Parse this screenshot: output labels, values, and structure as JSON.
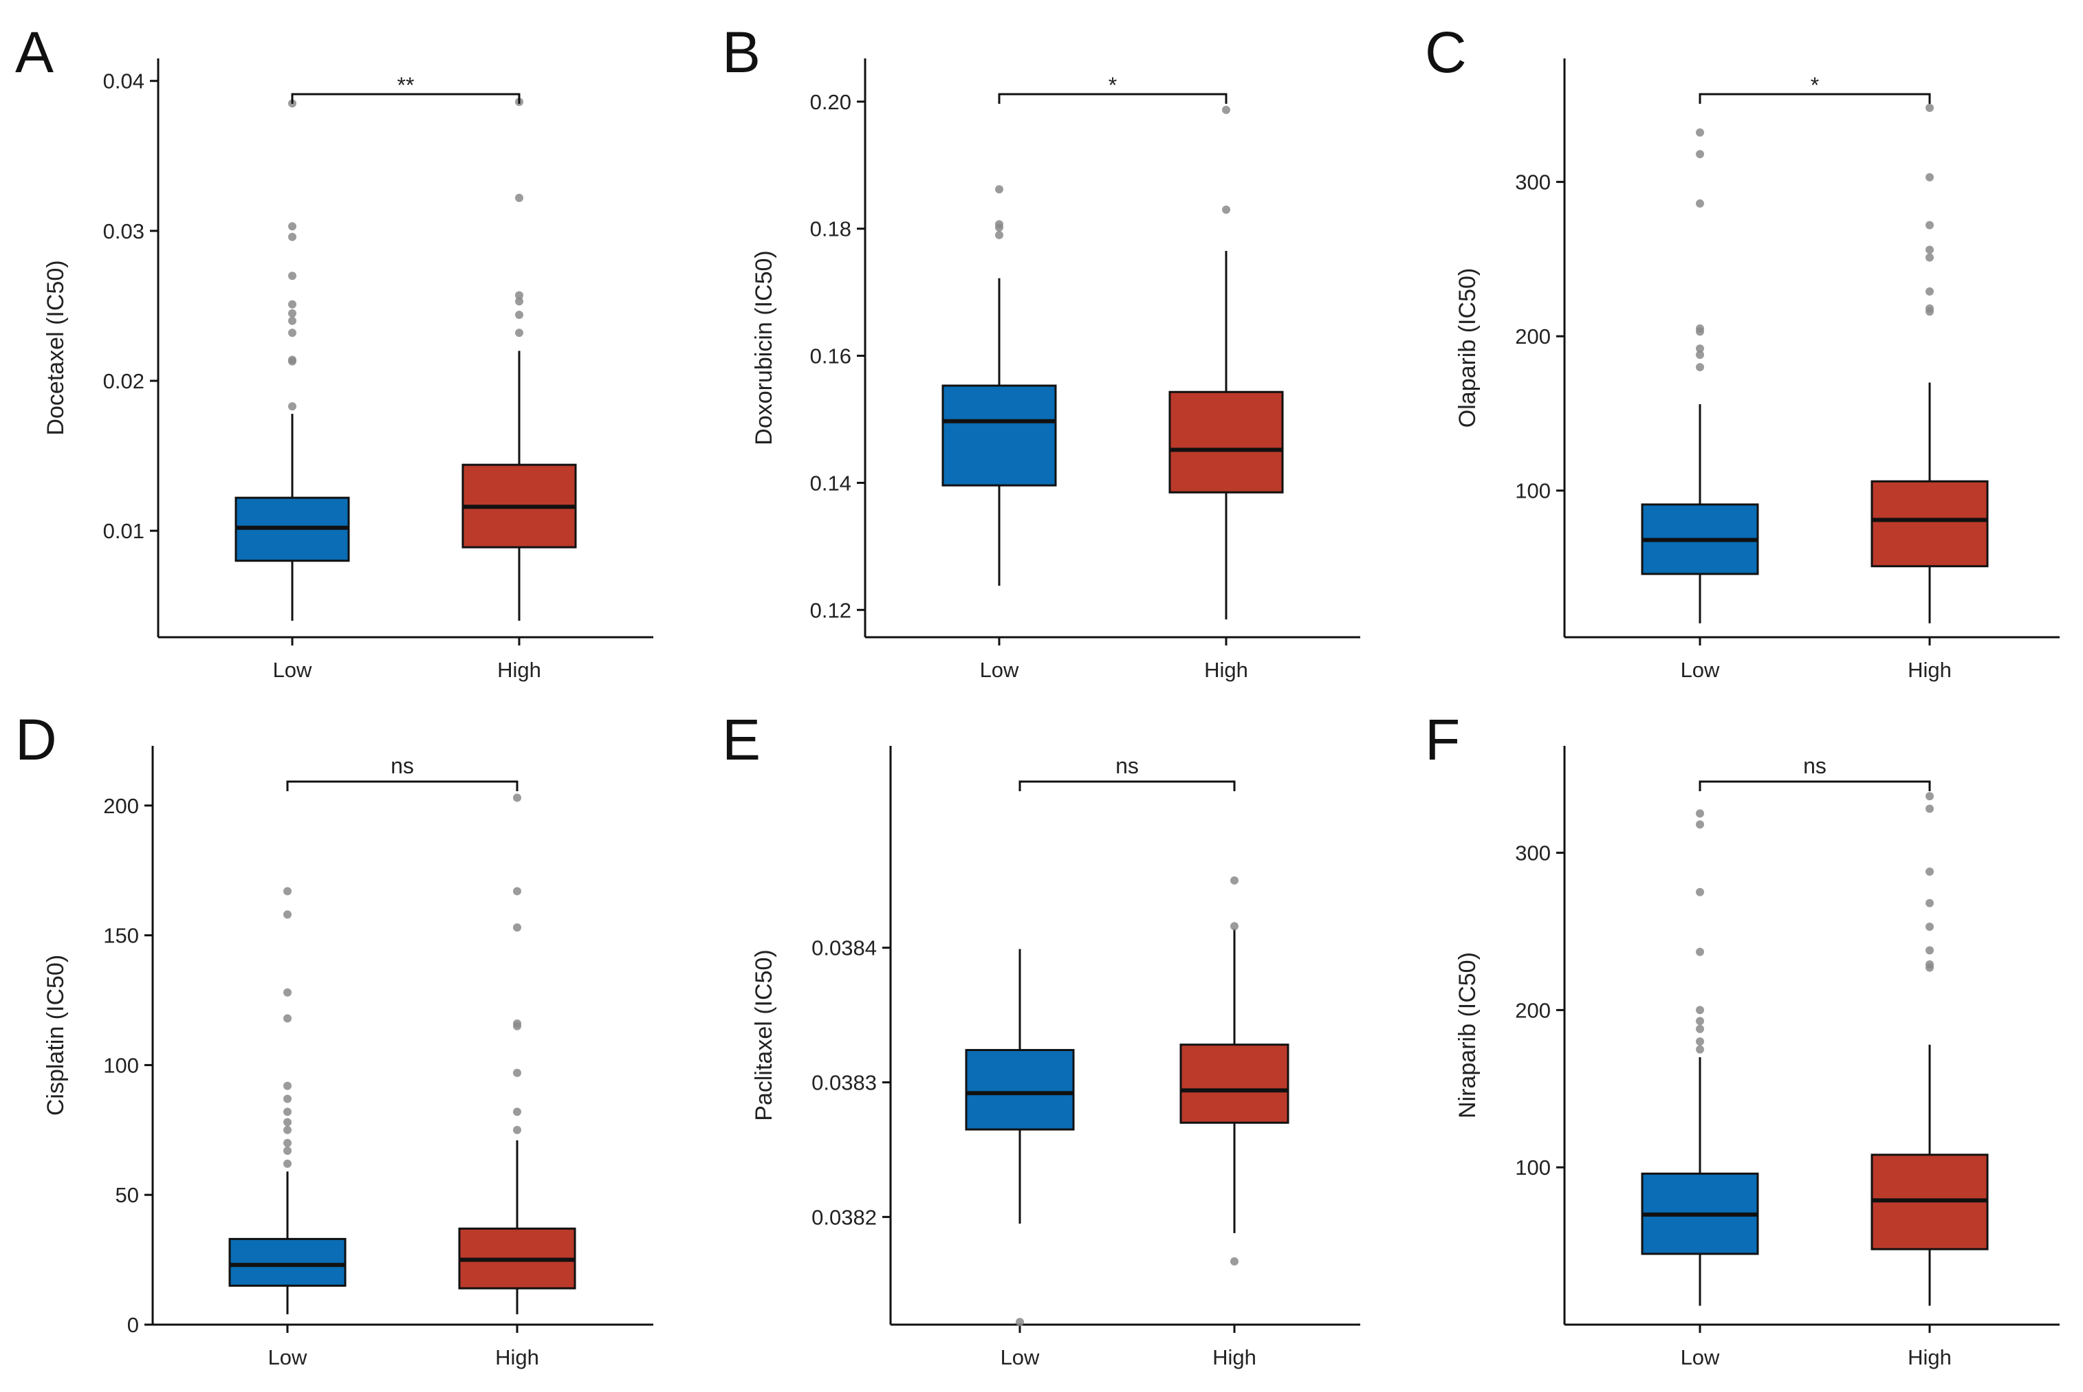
{
  "figure": {
    "group_colors": {
      "Low": "#0a6db5",
      "High": "#bb3a2a"
    },
    "outlier_color": "#8a8a8a"
  },
  "chart_data": [
    {
      "type": "box",
      "letter": "A",
      "ylabel": "Docetaxel (IC50)",
      "categories": [
        "Low",
        "High"
      ],
      "ylim": [
        0.0029,
        0.0415
      ],
      "yticks": [
        0.01,
        0.02,
        0.03,
        0.04
      ],
      "ytick_labels": [
        "0.01",
        "0.02",
        "0.03",
        "0.04"
      ],
      "significance": "**",
      "boxes": [
        {
          "group": "Low",
          "whisker_low": 0.004,
          "q1": 0.008,
          "median": 0.0102,
          "q3": 0.0122,
          "whisker_high": 0.0178,
          "outliers": [
            0.0183,
            0.0213,
            0.0214,
            0.0232,
            0.024,
            0.0245,
            0.0251,
            0.027,
            0.0296,
            0.0303,
            0.0385
          ]
        },
        {
          "group": "High",
          "whisker_low": 0.004,
          "q1": 0.0089,
          "median": 0.0116,
          "q3": 0.0144,
          "whisker_high": 0.022,
          "outliers": [
            0.0232,
            0.0244,
            0.0253,
            0.0257,
            0.0322,
            0.0386
          ]
        }
      ]
    },
    {
      "type": "box",
      "letter": "B",
      "ylabel": "Doxorubicin (IC50)",
      "categories": [
        "Low",
        "High"
      ],
      "ylim": [
        0.1157,
        0.2068
      ],
      "yticks": [
        0.12,
        0.14,
        0.16,
        0.18,
        0.2
      ],
      "ytick_labels": [
        "0.12",
        "0.14",
        "0.16",
        "0.18",
        "0.20"
      ],
      "significance": "*",
      "boxes": [
        {
          "group": "Low",
          "whisker_low": 0.1238,
          "q1": 0.1396,
          "median": 0.1497,
          "q3": 0.1553,
          "whisker_high": 0.1722,
          "outliers": [
            0.179,
            0.1802,
            0.1807,
            0.1862
          ]
        },
        {
          "group": "High",
          "whisker_low": 0.1185,
          "q1": 0.1385,
          "median": 0.1452,
          "q3": 0.1543,
          "whisker_high": 0.1765,
          "outliers": [
            0.183,
            0.1987
          ]
        }
      ]
    },
    {
      "type": "box",
      "letter": "C",
      "ylabel": "Olaparib (IC50)",
      "categories": [
        "Low",
        "High"
      ],
      "ylim": [
        5,
        380
      ],
      "yticks": [
        100,
        200,
        300
      ],
      "ytick_labels": [
        "100",
        "200",
        "300"
      ],
      "significance": "*",
      "boxes": [
        {
          "group": "Low",
          "whisker_low": 14,
          "q1": 46,
          "median": 68,
          "q3": 91,
          "whisker_high": 156,
          "outliers": [
            180,
            188,
            192,
            203,
            205,
            286,
            318,
            332
          ]
        },
        {
          "group": "High",
          "whisker_low": 14,
          "q1": 51,
          "median": 81,
          "q3": 106,
          "whisker_high": 170,
          "outliers": [
            216,
            218,
            229,
            251,
            256,
            272,
            303,
            348
          ]
        }
      ]
    },
    {
      "type": "box",
      "letter": "D",
      "ylabel": "Cisplatin (IC50)",
      "categories": [
        "Low",
        "High"
      ],
      "ylim": [
        0,
        223
      ],
      "yticks": [
        0,
        50,
        100,
        150,
        200
      ],
      "ytick_labels": [
        "0",
        "50",
        "100",
        "150",
        "200"
      ],
      "significance": "ns",
      "boxes": [
        {
          "group": "Low",
          "whisker_low": 4,
          "q1": 15,
          "median": 23,
          "q3": 33,
          "whisker_high": 59,
          "outliers": [
            62,
            67,
            70,
            75,
            78,
            82,
            87,
            92,
            118,
            128,
            158,
            167
          ]
        },
        {
          "group": "High",
          "whisker_low": 4,
          "q1": 14,
          "median": 25,
          "q3": 37,
          "whisker_high": 71,
          "outliers": [
            75,
            82,
            97,
            115,
            116,
            153,
            167,
            203
          ]
        }
      ]
    },
    {
      "type": "box",
      "letter": "E",
      "ylabel": "Paclitaxel (IC50)",
      "categories": [
        "Low",
        "High"
      ],
      "ylim": [
        0.03812,
        0.03855
      ],
      "yticks": [
        0.0382,
        0.0383,
        0.0384
      ],
      "ytick_labels": [
        "0.0382",
        "0.0383",
        "0.0384"
      ],
      "significance": "ns",
      "boxes": [
        {
          "group": "Low",
          "whisker_low": 0.038195,
          "q1": 0.038265,
          "median": 0.038292,
          "q3": 0.038324,
          "whisker_high": 0.038399,
          "outliers": [
            0.038122
          ]
        },
        {
          "group": "High",
          "whisker_low": 0.038188,
          "q1": 0.03827,
          "median": 0.038294,
          "q3": 0.038328,
          "whisker_high": 0.038414,
          "outliers": [
            0.038167,
            0.038416,
            0.03845
          ]
        }
      ]
    },
    {
      "type": "box",
      "letter": "F",
      "ylabel": "Niraparib (IC50)",
      "categories": [
        "Low",
        "High"
      ],
      "ylim": [
        0,
        368
      ],
      "yticks": [
        100,
        200,
        300
      ],
      "ytick_labels": [
        "100",
        "200",
        "300"
      ],
      "significance": "ns",
      "boxes": [
        {
          "group": "Low",
          "whisker_low": 12,
          "q1": 45,
          "median": 70,
          "q3": 96,
          "whisker_high": 170,
          "outliers": [
            175,
            180,
            188,
            193,
            200,
            237,
            275,
            318,
            325
          ]
        },
        {
          "group": "High",
          "whisker_low": 12,
          "q1": 48,
          "median": 79,
          "q3": 108,
          "whisker_high": 178,
          "outliers": [
            227,
            229,
            238,
            253,
            268,
            288,
            328,
            336
          ]
        }
      ]
    }
  ]
}
